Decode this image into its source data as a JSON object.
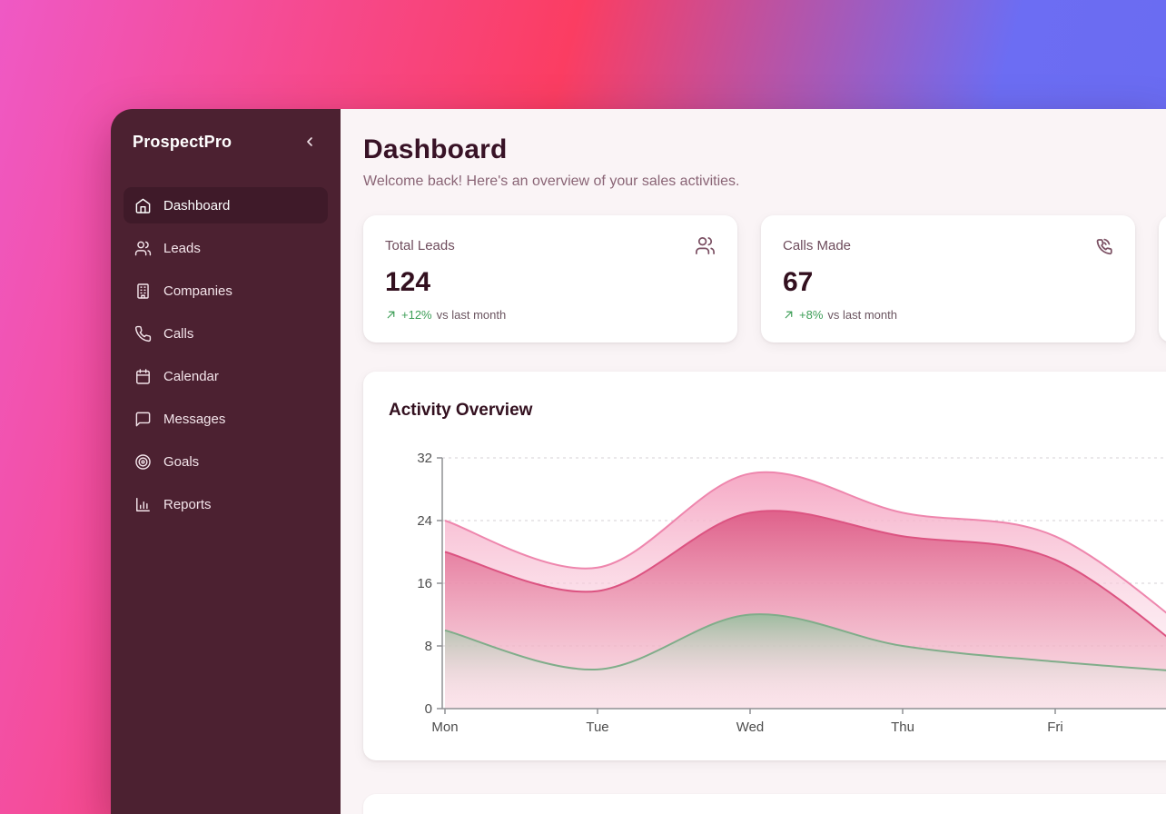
{
  "window": {
    "brand": "ProspectPro"
  },
  "sidebar": {
    "items": [
      {
        "label": "Dashboard",
        "icon": "home-icon",
        "active": true
      },
      {
        "label": "Leads",
        "icon": "users-icon",
        "active": false
      },
      {
        "label": "Companies",
        "icon": "building-icon",
        "active": false
      },
      {
        "label": "Calls",
        "icon": "phone-icon",
        "active": false
      },
      {
        "label": "Calendar",
        "icon": "calendar-icon",
        "active": false
      },
      {
        "label": "Messages",
        "icon": "message-icon",
        "active": false
      },
      {
        "label": "Goals",
        "icon": "target-icon",
        "active": false
      },
      {
        "label": "Reports",
        "icon": "bar-chart-icon",
        "active": false
      }
    ]
  },
  "header": {
    "title": "Dashboard",
    "subtitle": "Welcome back! Here's an overview of your sales activities."
  },
  "stat_cards": [
    {
      "label": "Total Leads",
      "value": "124",
      "change": "+12%",
      "change_note": "vs last month",
      "icon": "users-icon"
    },
    {
      "label": "Calls Made",
      "value": "67",
      "change": "+8%",
      "change_note": "vs last month",
      "icon": "phone-call-icon"
    }
  ],
  "chart_data": {
    "type": "area",
    "title": "Activity Overview",
    "categories": [
      "Mon",
      "Tue",
      "Wed",
      "Thu",
      "Fri"
    ],
    "series": [
      {
        "name": "pink-outer-band",
        "values": [
          24,
          18,
          30,
          25,
          22
        ],
        "offscreen_next_value": 8,
        "line_color": "#ee86ad",
        "fill_top": "#f5a5c2",
        "fill_bottom": "#fdf0f5",
        "fill_top_opacity": 0.95,
        "fill_bottom_opacity": 0.3
      },
      {
        "name": "rose-middle-band",
        "values": [
          20,
          15,
          25,
          22,
          19
        ],
        "offscreen_next_value": 5,
        "line_color": "#dc5381",
        "fill_top": "#dd5a85",
        "fill_bottom": "#f6c3d1",
        "fill_top_opacity": 0.93,
        "fill_bottom_opacity": 0.4
      },
      {
        "name": "green-bottom-band",
        "values": [
          10,
          5,
          12,
          8,
          6
        ],
        "offscreen_next_value": 4.5,
        "line_color": "#80ad8a",
        "fill_top": "#94bd9b",
        "fill_bottom": "#ffffff",
        "fill_top_opacity": 0.9,
        "fill_bottom_opacity": 0
      }
    ],
    "ylim": [
      0,
      32
    ],
    "yticks": [
      0,
      8,
      16,
      24,
      32
    ],
    "xlabel": "",
    "ylabel": "",
    "grid": "horizontal-dashed",
    "legend": "none"
  },
  "colors": {
    "bg_gradient_left": "#ef59c5",
    "bg_gradient_mid": "#fb3d62",
    "bg_gradient_right": "#6c6df3",
    "sidebar_bg": "#4c2131",
    "sidebar_active_bg": "#3f1a29",
    "content_bg": "#faf4f6",
    "card_bg": "#ffffff",
    "heading_text": "#381226",
    "muted_text": "#8a6576",
    "positive_green": "#3d9e57",
    "card_icon": "#7b5063",
    "axis_gray": "#8f9094",
    "gridline_gray": "#d6d2d4"
  }
}
